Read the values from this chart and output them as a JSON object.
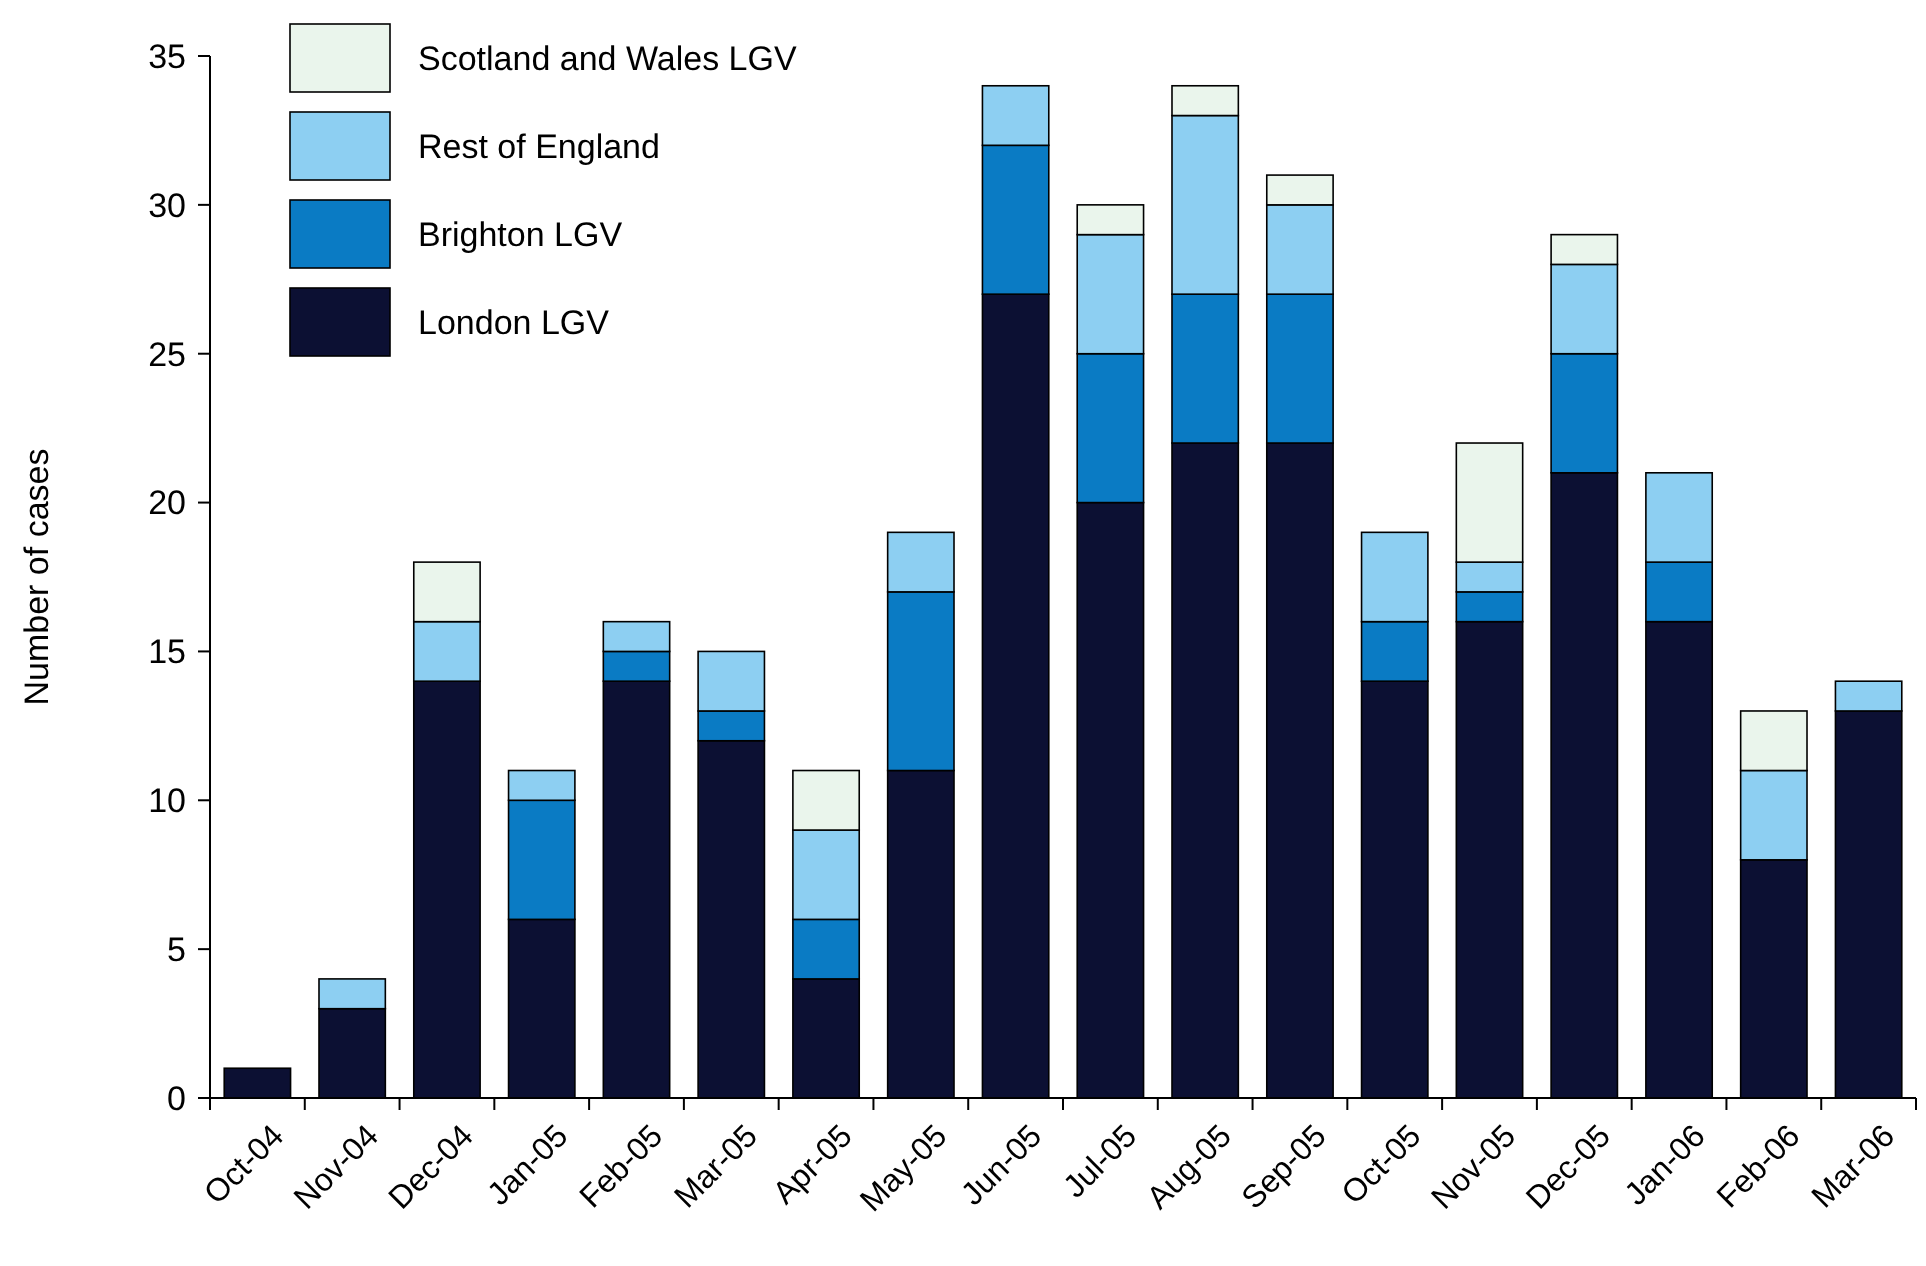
{
  "chart_data": {
    "type": "bar",
    "ylabel": "Number of cases",
    "stacked": true,
    "legend": "top left",
    "grid": false,
    "categories": [
      "Oct-04",
      "Nov-04",
      "Dec-04",
      "Jan-05",
      "Feb-05",
      "Mar-05",
      "Apr-05",
      "May-05",
      "Jun-05",
      "Jul-05",
      "Aug-05",
      "Sep-05",
      "Oct-05",
      "Nov-05",
      "Dec-05",
      "Jan-06",
      "Feb-06",
      "Mar-06"
    ],
    "ylim": [
      0,
      35
    ],
    "yticks": [
      0,
      5,
      10,
      15,
      20,
      25,
      30,
      35
    ],
    "series": [
      {
        "name": "London LGV",
        "color": "#0c1033",
        "values": [
          1,
          3,
          14,
          6,
          14,
          12,
          4,
          11,
          27,
          20,
          22,
          22,
          14,
          16,
          21,
          16,
          8,
          13
        ]
      },
      {
        "name": "Brighton LGV",
        "color": "#0a7bc4",
        "values": [
          0,
          0,
          0,
          4,
          1,
          1,
          2,
          6,
          5,
          5,
          5,
          5,
          2,
          1,
          4,
          2,
          0,
          0
        ]
      },
      {
        "name": "Rest of England",
        "color": "#8dcff2",
        "values": [
          0,
          1,
          2,
          1,
          1,
          2,
          3,
          2,
          2,
          4,
          6,
          3,
          3,
          1,
          3,
          3,
          3,
          1
        ]
      },
      {
        "name": "Scotland and Wales LGV",
        "color": "#eaf5ec",
        "values": [
          0,
          0,
          2,
          0,
          0,
          0,
          2,
          0,
          0,
          1,
          1,
          1,
          0,
          4,
          1,
          0,
          2,
          0
        ]
      }
    ]
  }
}
